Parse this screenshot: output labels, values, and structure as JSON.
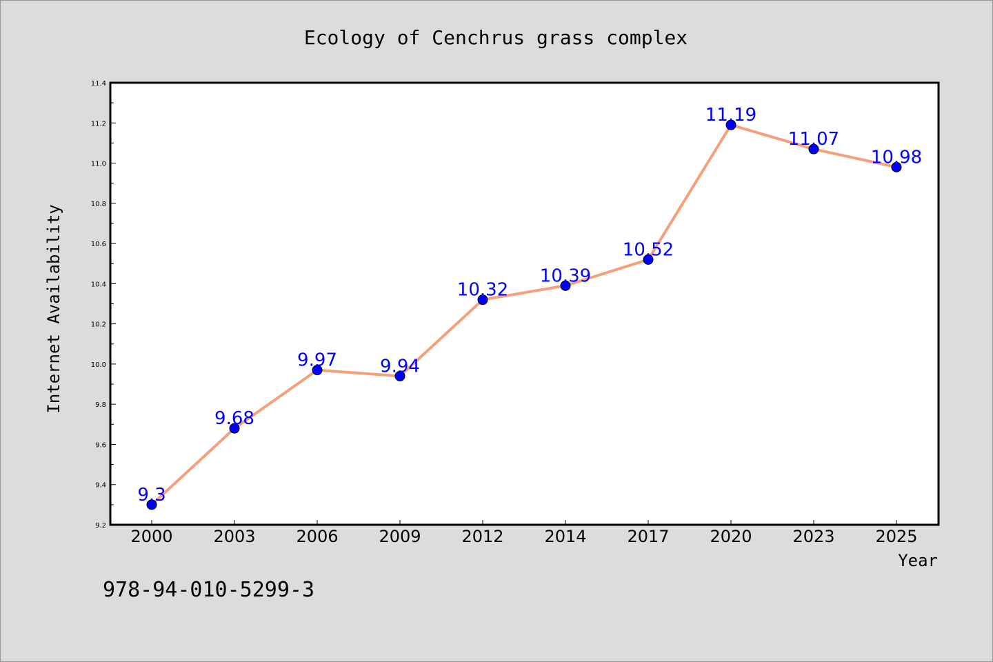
{
  "chart_data": {
    "type": "line",
    "title": "Ecology of Cenchrus grass complex",
    "xlabel": "Year",
    "ylabel": "Internet Availability",
    "categories": [
      "2000",
      "2003",
      "2006",
      "2009",
      "2012",
      "2014",
      "2017",
      "2020",
      "2023",
      "2025"
    ],
    "series": [
      {
        "values": [
          9.3,
          9.68,
          9.97,
          9.94,
          10.32,
          10.39,
          10.52,
          11.19,
          11.07,
          10.98
        ],
        "data_labels": [
          "9.3",
          "9.68",
          "9.97",
          "9.94",
          "10.32",
          "10.39",
          "10.52",
          "11.19",
          "11.07",
          "10.98"
        ],
        "line_color": "#f4a07a",
        "marker_color": "#0000ff",
        "label_color": "#0000ff"
      }
    ],
    "ylim": [
      9.2,
      11.4
    ],
    "y_ticks": [
      "9.2",
      "9.4",
      "9.6",
      "9.8",
      "10.0",
      "10.2",
      "10.4",
      "10.6",
      "10.8",
      "11.0",
      "11.2",
      "11.4"
    ],
    "grid": false,
    "legend": "none"
  },
  "footer": {
    "isbn": "978-94-010-5299-3"
  },
  "colors": {
    "background": "#dcdcdc",
    "plot_background": "#ffffff",
    "axis": "#000000"
  }
}
